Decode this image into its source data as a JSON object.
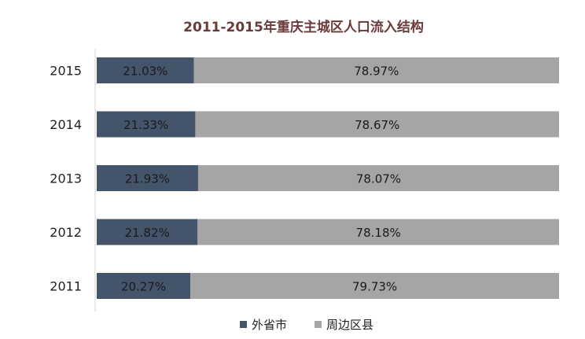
{
  "chart_data": {
    "type": "bar",
    "orientation": "horizontal",
    "stacked": true,
    "title": "2011-2015年重庆主城区人口流入结构",
    "categories": [
      "2015",
      "2014",
      "2013",
      "2012",
      "2011"
    ],
    "series": [
      {
        "name": "外省市",
        "values": [
          21.03,
          21.33,
          21.93,
          21.82,
          20.27
        ],
        "labels": [
          "21.03%",
          "21.33%",
          "21.93%",
          "21.82%",
          "20.27%"
        ],
        "color": "#44546a"
      },
      {
        "name": "周边区县",
        "values": [
          78.97,
          78.67,
          78.07,
          78.18,
          79.73
        ],
        "labels": [
          "78.97%",
          "78.67%",
          "78.07%",
          "78.18%",
          "79.73%"
        ],
        "color": "#a5a5a5"
      }
    ],
    "xlim": [
      0,
      100
    ],
    "grid": false,
    "legend_position": "bottom"
  }
}
